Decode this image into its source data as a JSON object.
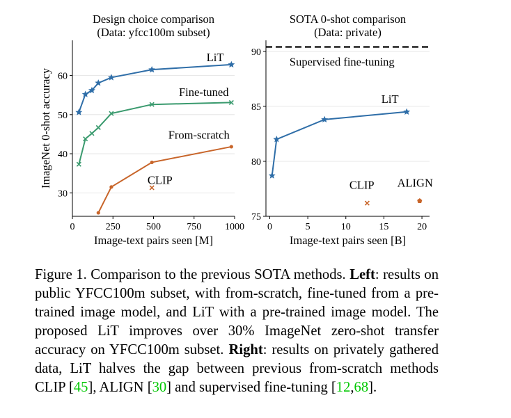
{
  "colors": {
    "lit": "#2f6ea8",
    "finetuned": "#3a9a6e",
    "scratch": "#c8652a",
    "baseline": "#c8652a",
    "supervised": "#000000",
    "citation": "#00c800"
  },
  "chart_data": [
    {
      "type": "line",
      "title": "Design choice comparison",
      "subtitle": "(Data: yfcc100m subset)",
      "xlabel": "Image-text pairs seen [M]",
      "ylabel": "ImageNet 0-shot accuracy",
      "xlim": [
        0,
        1000
      ],
      "ylim": [
        24,
        69
      ],
      "xticks": [
        0,
        250,
        500,
        750,
        1000
      ],
      "xtick_labels": [
        "0",
        "250",
        "500",
        "750",
        "1000"
      ],
      "yticks": [
        30,
        40,
        50,
        60
      ],
      "ytick_labels": [
        "30",
        "40",
        "50",
        "60"
      ],
      "grid": "y",
      "legend": "inline labels",
      "series": [
        {
          "name": "LiT",
          "color_key": "lit",
          "marker": "star",
          "x": [
            40,
            80,
            120,
            160,
            240,
            490,
            980
          ],
          "y": [
            50.6,
            55.2,
            56.2,
            58.1,
            59.5,
            61.5,
            62.8
          ]
        },
        {
          "name": "Fine-tuned",
          "color_key": "finetuned",
          "marker": "x",
          "x": [
            40,
            80,
            120,
            160,
            240,
            490,
            980
          ],
          "y": [
            37.3,
            43.8,
            45.2,
            46.7,
            50.3,
            52.6,
            53.1
          ]
        },
        {
          "name": "From-scratch",
          "color_key": "scratch",
          "marker": "dot",
          "x": [
            160,
            240,
            490,
            980
          ],
          "y": [
            24.9,
            31.5,
            37.8,
            41.8
          ]
        }
      ],
      "points": [
        {
          "name": "CLIP",
          "color_key": "baseline",
          "marker": "x",
          "x": 490,
          "y": 31.3
        }
      ],
      "labels": [
        {
          "text": "LiT",
          "x": 880,
          "y": 63.7
        },
        {
          "text": "Fine-tuned",
          "x": 810,
          "y": 54.8
        },
        {
          "text": "From-scratch",
          "x": 780,
          "y": 43.8
        },
        {
          "text": "CLIP",
          "x": 540,
          "y": 32.3
        }
      ]
    },
    {
      "type": "line",
      "title": "SOTA 0-shot comparison",
      "subtitle": "(Data: private)",
      "xlabel": "Image-text pairs seen [B]",
      "ylabel": "",
      "xlim": [
        -0.5,
        21
      ],
      "ylim": [
        75,
        91
      ],
      "xticks": [
        0,
        5,
        10,
        15,
        20
      ],
      "xtick_labels": [
        "0",
        "5",
        "10",
        "15",
        "20"
      ],
      "yticks": [
        75,
        80,
        85,
        90
      ],
      "ytick_labels": [
        "75",
        "80",
        "85",
        "90"
      ],
      "grid": "y",
      "legend": "inline labels",
      "series": [
        {
          "name": "LiT",
          "color_key": "lit",
          "marker": "star",
          "x": [
            0.3,
            0.9,
            7.2,
            18.0
          ],
          "y": [
            78.7,
            82.0,
            83.8,
            84.5
          ]
        }
      ],
      "hlines": [
        {
          "name": "Supervised fine-tuning",
          "y": 90.4,
          "style": "dashed",
          "color_key": "supervised"
        }
      ],
      "points": [
        {
          "name": "CLIP",
          "color_key": "baseline",
          "marker": "x",
          "x": 12.8,
          "y": 76.2
        },
        {
          "name": "ALIGN",
          "color_key": "baseline",
          "marker": "pentagon",
          "x": 19.7,
          "y": 76.4
        }
      ],
      "labels": [
        {
          "text": "LiT",
          "x": 15.8,
          "y": 85.3
        },
        {
          "text": "Supervised fine-tuning",
          "x": 9.5,
          "y": 88.7
        },
        {
          "text": "CLIP",
          "x": 12.1,
          "y": 77.5
        },
        {
          "text": "ALIGN",
          "x": 19.1,
          "y": 77.7
        }
      ]
    }
  ],
  "caption": {
    "lead": "Figure 1. Comparison to the previous SOTA methods.",
    "left_label": "Left",
    "left_text": ": results on public YFCC100m subset, with from-scratch, fine-tuned from a pre-trained image model, and LiT with a pre-trained image model. The proposed LiT improves over 30% ImageNet zero-shot transfer accuracy on YFCC100m subset.",
    "right_label": "Right",
    "right_text": ": results on privately gathered data, LiT halves the gap between previous from-scratch methods CLIP [",
    "cite_1": "45",
    "text_2": "], ALIGN [",
    "cite_2": "30",
    "text_3": "] and supervised fine-tuning [",
    "cite_3": "12",
    "text_4": ",",
    "cite_4": "68",
    "text_5": "]."
  }
}
